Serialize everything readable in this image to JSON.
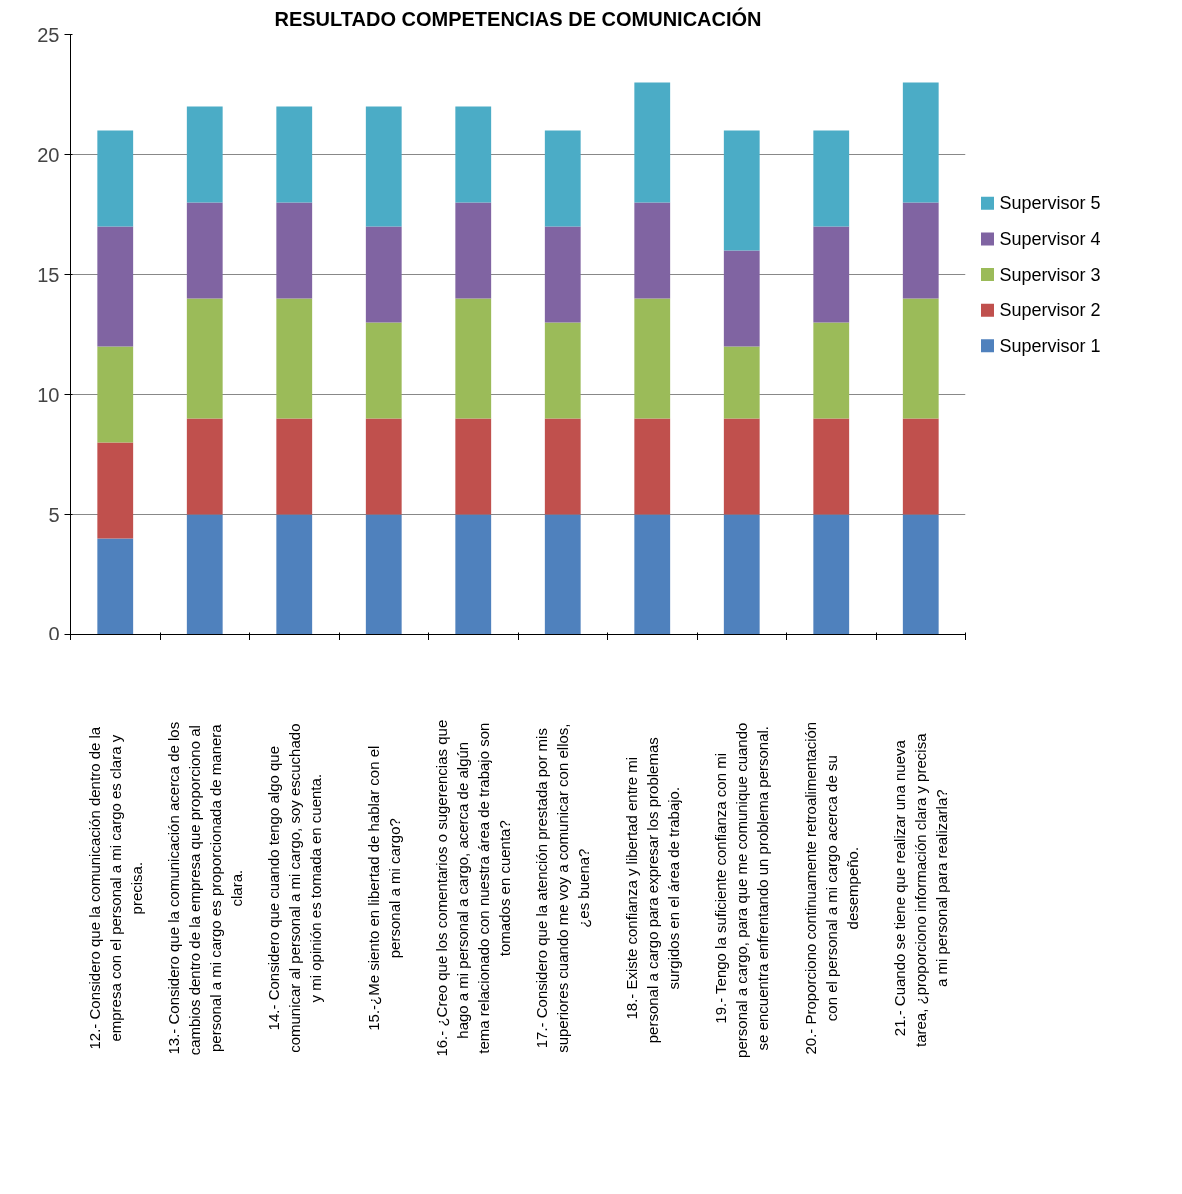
{
  "chart_data": {
    "type": "bar",
    "title": "RESULTADO COMPETENCIAS DE COMUNICACIÓN",
    "stacked": true,
    "grid": "y",
    "legend": "right",
    "ylim": [
      0,
      25
    ],
    "yticks": [
      0,
      5,
      10,
      15,
      20,
      25
    ],
    "categories": [
      "12.- Considero que la comunicación dentro de la empresa con el personal a mi cargo es clara y precisa.",
      "13.- Considero que la comunicación acerca de los cambios  dentro de la empresa que proporciono al personal a mi cargo es proporcionada de manera clara.",
      "14.- Considero que cuando tengo algo que comunicar al personal a mi cargo, soy escuchado y mi opinión es tomada en cuenta.",
      "15.-¿Me siento en libertad de hablar con el personal a mi cargo?",
      "16.- ¿Creo que los comentarios o sugerencias que hago a mi personal a cargo,  acerca de algún tema relacionado con nuestra área de trabajo son tomados en cuenta?",
      "17.- Considero que la atención prestada por mis superiores cuando me voy a comunicar con ellos, ¿es buena?",
      "18.- Existe confianza y libertad entre mi personal a cargo para expresar  los problemas surgidos en el área de trabajo.",
      "19.- Tengo la suficiente confianza con mi personal a cargo, para que  me comunique cuando se encuentra enfrentando un problema personal.",
      "20.- Proporciono continuamente retroalimentación con el personal a mi cargo acerca de su desempeño.",
      "21.- Cuando se tiene que realizar una nueva tarea, ¿proporciono información clara  y precisa a mi personal para realizarla?"
    ],
    "series": [
      {
        "name": "Supervisor 1",
        "color": "#4f81bd",
        "values": [
          4,
          5,
          5,
          5,
          5,
          5,
          5,
          5,
          5,
          5
        ]
      },
      {
        "name": "Supervisor 2",
        "color": "#c0504d",
        "values": [
          4,
          4,
          4,
          4,
          4,
          4,
          4,
          4,
          4,
          4
        ]
      },
      {
        "name": "Supervisor 3",
        "color": "#9bbb59",
        "values": [
          4,
          5,
          5,
          4,
          5,
          4,
          5,
          3,
          4,
          5
        ]
      },
      {
        "name": "Supervisor 4",
        "color": "#8064a2",
        "values": [
          5,
          4,
          4,
          4,
          4,
          4,
          4,
          4,
          4,
          4
        ]
      },
      {
        "name": "Supervisor 5",
        "color": "#4bacc6",
        "values": [
          4,
          4,
          4,
          5,
          4,
          4,
          5,
          5,
          4,
          5
        ]
      }
    ]
  }
}
